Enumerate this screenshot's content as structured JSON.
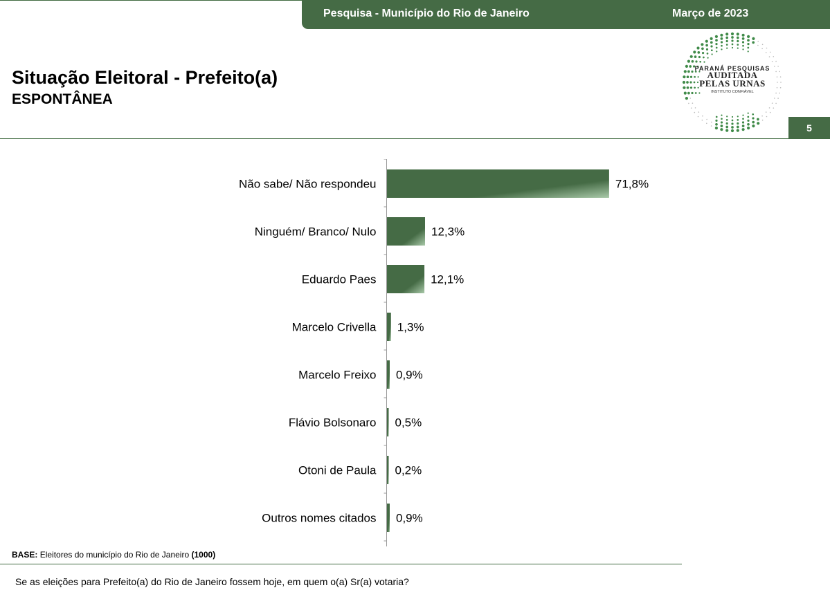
{
  "header": {
    "survey": "Pesquisa - Município do Rio de Janeiro",
    "date": "Março de 2023"
  },
  "title": "Situação Eleitoral - Prefeito(a)",
  "subtitle": "ESPONTÂNEA",
  "seal": {
    "line1": "PARANÁ PESQUISAS",
    "line2": "AUDITADA",
    "line3": "PELAS URNAS",
    "line4": "INSTITUTO CONFIÁVEL"
  },
  "page_number": "5",
  "colors": {
    "accent": "#456b45",
    "bar_light": "#a9c9a9"
  },
  "chart_data": {
    "type": "bar",
    "orientation": "horizontal",
    "categories": [
      "Não sabe/ Não respondeu",
      "Ninguém/ Branco/ Nulo",
      "Eduardo Paes",
      "Marcelo Crivella",
      "Marcelo Freixo",
      "Flávio Bolsonaro",
      "Otoni de Paula",
      "Outros nomes citados"
    ],
    "values": [
      71.8,
      12.3,
      12.1,
      1.3,
      0.9,
      0.5,
      0.2,
      0.9
    ],
    "value_labels": [
      "71,8%",
      "12,3%",
      "12,1%",
      "1,3%",
      "0,9%",
      "0,5%",
      "0,2%",
      "0,9%"
    ],
    "unit": "%",
    "grid": false,
    "legend": "none"
  },
  "footer": {
    "base_label": "BASE:",
    "base_text": "Eleitores do município do Rio de Janeiro",
    "base_n": "(1000)",
    "question": "Se as eleições para Prefeito(a) do Rio de Janeiro fossem hoje, em quem o(a) Sr(a) votaria?"
  }
}
